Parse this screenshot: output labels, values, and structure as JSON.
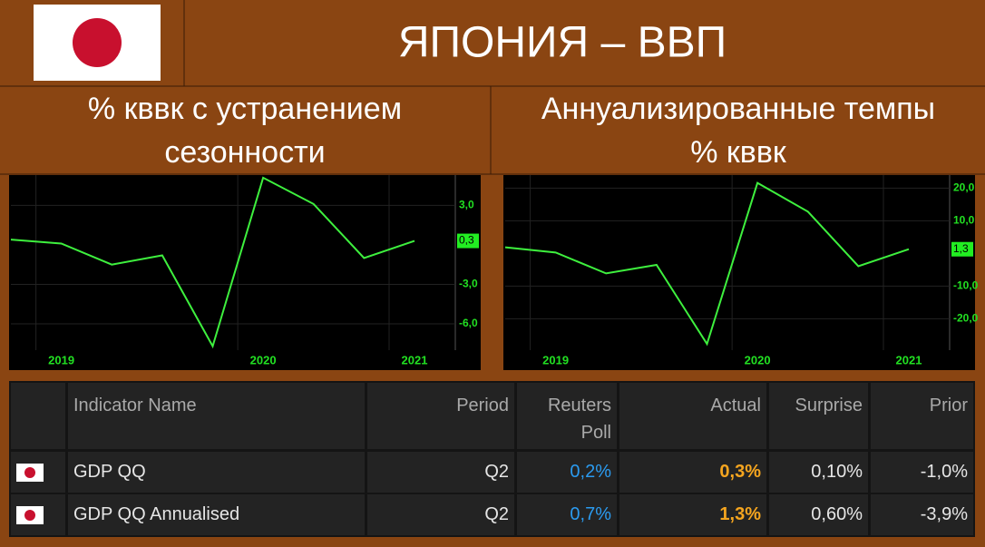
{
  "header": {
    "title": "ЯПОНИЯ – ВВП"
  },
  "chart_data": [
    {
      "type": "line",
      "title": [
        "% кввк с устранением",
        "сезонности"
      ],
      "categories": [
        null,
        "2019",
        null,
        null,
        null,
        "2020",
        null,
        null,
        "2021"
      ],
      "series": [
        {
          "color": "#3ef03e",
          "values": [
            0.4,
            0.1,
            -1.5,
            -0.8,
            -7.7,
            5.1,
            3.1,
            -1.0,
            0.3
          ],
          "value_labels": [
            null,
            null,
            null,
            null,
            null,
            null,
            null,
            null,
            "0,3"
          ]
        }
      ],
      "ylim": [
        -8.0,
        5.3
      ],
      "yticks": [
        {
          "value": 3,
          "label": "3,0"
        },
        {
          "value": -3,
          "label": "-3,0"
        },
        {
          "value": -6,
          "label": "-6,0"
        }
      ],
      "grid": true
    },
    {
      "type": "line",
      "title": [
        "Аннуализированные темпы",
        "% кввк"
      ],
      "categories": [
        null,
        "2019",
        null,
        null,
        null,
        "2020",
        null,
        null,
        "2021"
      ],
      "series": [
        {
          "color": "#3ef03e",
          "values": [
            1.9,
            0.3,
            -6.1,
            -3.5,
            -27.7,
            21.6,
            12.8,
            -3.9,
            1.3
          ],
          "value_labels": [
            null,
            null,
            null,
            null,
            null,
            null,
            null,
            null,
            "1,3"
          ]
        }
      ],
      "ylim": [
        -29.6,
        24
      ],
      "yticks": [
        {
          "value": 20,
          "label": "20,0"
        },
        {
          "value": 10,
          "label": "10,0"
        },
        {
          "value": -10,
          "label": "-10,0"
        },
        {
          "value": -20,
          "label": "-20,0"
        }
      ],
      "grid": true
    }
  ],
  "table": {
    "columns": [
      "Indicator Name",
      "Period",
      "Reuters Poll",
      "Actual",
      "Surprise",
      "Prior"
    ],
    "rows": [
      [
        "GDP QQ",
        "Q2",
        "0,2%",
        "0,3%",
        "0,10%",
        "-1,0%"
      ],
      [
        "GDP QQ Annualised",
        "Q2",
        "0,7%",
        "1,3%",
        "0,60%",
        "-3,9%"
      ]
    ]
  }
}
